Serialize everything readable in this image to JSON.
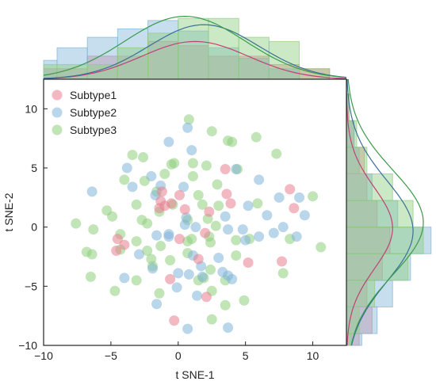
{
  "chart_data": {
    "type": "scatter",
    "title": "",
    "xlabel": "t SNE-1",
    "ylabel": "t SNE-2",
    "xlim": [
      -10,
      12.5
    ],
    "ylim": [
      -10,
      12.5
    ],
    "xticks": [
      -10,
      -5,
      0,
      5,
      10
    ],
    "yticks": [
      -10,
      -5,
      0,
      5,
      10
    ],
    "legend_position": "top-left",
    "marginal_plots": "histogram with density curve on top (x) and right (y)",
    "series": [
      {
        "name": "Subtype1",
        "color": "#e8808f",
        "points": [
          [
            -1.2,
            3.0
          ],
          [
            -0.5,
            2.0
          ],
          [
            0.1,
            2.7
          ],
          [
            -1.4,
            1.6
          ],
          [
            -1.0,
            1.8
          ],
          [
            -1.3,
            2.2
          ],
          [
            0.5,
            1.5
          ],
          [
            2.3,
            1.3
          ],
          [
            3.6,
            2.8
          ],
          [
            3.9,
            2.0
          ],
          [
            3.5,
            4.9
          ],
          [
            8.3,
            3.2
          ],
          [
            8.6,
            1.6
          ],
          [
            2.0,
            -0.5
          ],
          [
            -4.5,
            -1.0
          ],
          [
            -4.0,
            -1.5
          ],
          [
            -4.6,
            -2.0
          ],
          [
            1.5,
            -2.7
          ],
          [
            7.7,
            -2.9
          ],
          [
            -0.6,
            -4.4
          ],
          [
            2.1,
            -5.9
          ],
          [
            0.1,
            -1.0
          ],
          [
            -0.3,
            -7.9
          ],
          [
            5.2,
            -3.0
          ]
        ],
        "hist_x": [
          0.05,
          0.05,
          0.11,
          0.11,
          0.18,
          0.16,
          0.11,
          0.11,
          0.07,
          0.05,
          0.0
        ],
        "hist_y": [
          0.05,
          0.1,
          0.08,
          0.14,
          0.17,
          0.12,
          0.08,
          0.07,
          0.03,
          0.01,
          0.0
        ]
      },
      {
        "name": "Subtype2",
        "color": "#82b5d9",
        "points": [
          [
            0.7,
            8.4
          ],
          [
            -0.7,
            7.2
          ],
          [
            1.0,
            6.5
          ],
          [
            -3.8,
            5.0
          ],
          [
            -3.4,
            3.4
          ],
          [
            -2.0,
            4.3
          ],
          [
            -6.4,
            3.0
          ],
          [
            -1.3,
            3.5
          ],
          [
            -1.7,
            2.7
          ],
          [
            0.4,
            3.4
          ],
          [
            4.3,
            4.9
          ],
          [
            6.0,
            4.0
          ],
          [
            5.2,
            1.8
          ],
          [
            9.0,
            2.5
          ],
          [
            7.5,
            2.5
          ],
          [
            9.4,
            1.0
          ],
          [
            6.6,
            1.0
          ],
          [
            4.8,
            -0.2
          ],
          [
            3.5,
            0.9
          ],
          [
            0.6,
            0.8
          ],
          [
            0.5,
            0.2
          ],
          [
            -1.6,
            -0.7
          ],
          [
            -0.7,
            -0.8
          ],
          [
            1.3,
            0.0
          ],
          [
            3.7,
            -0.2
          ],
          [
            7.1,
            -0.5
          ],
          [
            7.8,
            0.0
          ],
          [
            6.0,
            -0.8
          ],
          [
            1.1,
            -2.4
          ],
          [
            -0.7,
            -0.6
          ],
          [
            3.0,
            -2.6
          ],
          [
            1.7,
            -3.3
          ],
          [
            0.8,
            -4.0
          ],
          [
            -1.9,
            -3.5
          ],
          [
            0.0,
            -3.9
          ],
          [
            -0.1,
            -5.1
          ],
          [
            4.0,
            -4.4
          ],
          [
            -4.0,
            -4.3
          ],
          [
            -2.9,
            -2.3
          ],
          [
            3.3,
            -3.8
          ],
          [
            3.7,
            -4.1
          ],
          [
            1.4,
            -5.8
          ],
          [
            -1.6,
            -6.5
          ],
          [
            3.7,
            -8.5
          ],
          [
            0.7,
            -8.6
          ],
          [
            8.8,
            -0.8
          ],
          [
            5.0,
            -1.1
          ],
          [
            1.8,
            -4.2
          ]
        ],
        "hist_x": [
          0.09,
          0.15,
          0.2,
          0.24,
          0.28,
          0.23,
          0.15,
          0.1,
          0.05,
          0.0,
          0.0
        ],
        "hist_y": [
          0.06,
          0.12,
          0.18,
          0.25,
          0.33,
          0.2,
          0.1,
          0.05,
          0.03,
          0.01,
          0.0
        ]
      },
      {
        "name": "Subtype3",
        "color": "#8fcf7e",
        "points": [
          [
            0.8,
            9.1
          ],
          [
            2.5,
            8.1
          ],
          [
            3.7,
            7.3
          ],
          [
            4.0,
            7.2
          ],
          [
            5.8,
            7.6
          ],
          [
            -3.4,
            6.1
          ],
          [
            -2.6,
            5.9
          ],
          [
            7.3,
            6.2
          ],
          [
            -0.5,
            5.3
          ],
          [
            -0.3,
            5.4
          ],
          [
            1.1,
            5.4
          ],
          [
            2.1,
            5.2
          ],
          [
            4.4,
            4.9
          ],
          [
            -4.0,
            4.0
          ],
          [
            -2.5,
            3.9
          ],
          [
            -1.0,
            4.5
          ],
          [
            1.1,
            4.3
          ],
          [
            2.9,
            3.6
          ],
          [
            10.0,
            2.6
          ],
          [
            -1.6,
            3.0
          ],
          [
            1.5,
            2.7
          ],
          [
            3.0,
            1.8
          ],
          [
            5.9,
            2.0
          ],
          [
            -3.1,
            1.9
          ],
          [
            -1.4,
            1.3
          ],
          [
            -0.4,
            1.9
          ],
          [
            1.8,
            1.9
          ],
          [
            -5.3,
            1.4
          ],
          [
            -2.3,
            0.3
          ],
          [
            0.7,
            0.6
          ],
          [
            2.2,
            0.7
          ],
          [
            -7.6,
            0.3
          ],
          [
            -4.9,
            0.9
          ],
          [
            -2.7,
            0.6
          ],
          [
            -6.3,
            -0.2
          ],
          [
            2.8,
            0.1
          ],
          [
            -4.3,
            -0.6
          ],
          [
            0.7,
            -1.2
          ],
          [
            2.4,
            -1.3
          ],
          [
            4.3,
            -1.1
          ],
          [
            -6.8,
            -2.1
          ],
          [
            -6.4,
            -2.3
          ],
          [
            -4.3,
            -1.9
          ],
          [
            -3.1,
            -1.2
          ],
          [
            -1.3,
            -1.6
          ],
          [
            1.0,
            -1.0
          ],
          [
            2.3,
            -0.8
          ],
          [
            5.3,
            -1.0
          ],
          [
            8.3,
            -1.0
          ],
          [
            10.6,
            -1.7
          ],
          [
            -2.3,
            -2.0
          ],
          [
            -2.0,
            -2.7
          ],
          [
            0.7,
            -2.2
          ],
          [
            4.3,
            -2.4
          ],
          [
            -1.9,
            -3.3
          ],
          [
            -0.6,
            -2.8
          ],
          [
            2.4,
            -3.6
          ],
          [
            1.5,
            -4.5
          ],
          [
            7.8,
            -3.9
          ],
          [
            -6.5,
            -4.2
          ],
          [
            -3.1,
            -4.5
          ],
          [
            1.9,
            -4.3
          ],
          [
            3.5,
            -4.5
          ],
          [
            -4.7,
            -5.4
          ],
          [
            2.5,
            -5.4
          ],
          [
            4.9,
            -6.2
          ],
          [
            -1.4,
            -5.6
          ],
          [
            3.5,
            -6.6
          ],
          [
            2.5,
            -7.8
          ]
        ],
        "hist_x": [
          0.07,
          0.07,
          0.07,
          0.15,
          0.22,
          0.29,
          0.29,
          0.2,
          0.18,
          0.05,
          0.0
        ],
        "hist_y": [
          0.02,
          0.05,
          0.11,
          0.24,
          0.3,
          0.26,
          0.18,
          0.08,
          0.04,
          0.01,
          0.0
        ]
      }
    ],
    "hist_bins": [
      -11.25,
      -9.0,
      -6.75,
      -4.5,
      -2.25,
      0.0,
      2.25,
      4.5,
      6.75,
      9.0,
      11.25,
      13.5
    ]
  }
}
